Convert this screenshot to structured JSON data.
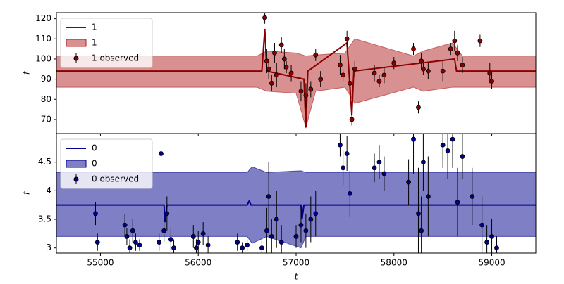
{
  "chart_data": [
    {
      "type": "line",
      "ylabel": "f",
      "xlim": [
        54550,
        59450
      ],
      "ylim": [
        63,
        123
      ],
      "yticks": [
        70,
        80,
        90,
        100,
        110,
        120
      ],
      "legend": "upper left",
      "series": [
        {
          "name": "1",
          "kind": "line",
          "color": "#8b0000",
          "x": [
            54550,
            56650,
            56680,
            56700,
            57080,
            57100,
            57120,
            57520,
            57540,
            57570,
            57590,
            58620,
            58640,
            59450
          ],
          "values": [
            94,
            94,
            115,
            94,
            90,
            66,
            94,
            108,
            94,
            72,
            94,
            100,
            94,
            94
          ]
        },
        {
          "name": "1",
          "kind": "band",
          "color": "#b22222",
          "x": [
            54550,
            56600,
            56700,
            57000,
            57100,
            57200,
            57500,
            57600,
            58200,
            58300,
            58600,
            58700,
            59450
          ],
          "lower": [
            86,
            86,
            84,
            83,
            66,
            84,
            86,
            78,
            86,
            84,
            86,
            86,
            86
          ],
          "upper": [
            101.5,
            101.5,
            104,
            103,
            101.5,
            102,
            103,
            110,
            101.5,
            104,
            108,
            101.5,
            101.5
          ]
        },
        {
          "name": "1 observed",
          "kind": "points",
          "color": "#8b0000",
          "x": [
            56680,
            56700,
            56720,
            56750,
            56780,
            56800,
            56850,
            56880,
            56900,
            56950,
            57050,
            57100,
            57150,
            57200,
            57250,
            57450,
            57480,
            57520,
            57550,
            57570,
            57600,
            57800,
            57850,
            57900,
            58000,
            58200,
            58250,
            58280,
            58300,
            58350,
            58500,
            58580,
            58620,
            58650,
            58700,
            58880,
            58980,
            59000
          ],
          "values": [
            120.5,
            99,
            95,
            88,
            103,
            92,
            107,
            100,
            96,
            93,
            84,
            82,
            85,
            102,
            90,
            97,
            92,
            110,
            88,
            70,
            95,
            93,
            89,
            92,
            98,
            105,
            76,
            99,
            95,
            94,
            94,
            105,
            109,
            103,
            97,
            109,
            93,
            89
          ],
          "errors": [
            3,
            6,
            5,
            4,
            5,
            6,
            4,
            5,
            3,
            4,
            5,
            6,
            4,
            3,
            4,
            5,
            3,
            4,
            5,
            3,
            4,
            4,
            3,
            4,
            3,
            3,
            3,
            4,
            3,
            4,
            5,
            3,
            5,
            4,
            4,
            3,
            5,
            4
          ]
        }
      ]
    },
    {
      "type": "line",
      "ylabel": "f",
      "xlabel": "t",
      "xlim": [
        54550,
        59450
      ],
      "ylim": [
        2.91,
        5.0
      ],
      "yticks": [
        3.0,
        3.5,
        4.0,
        4.5
      ],
      "xticks": [
        55000,
        56000,
        57000,
        58000,
        59000
      ],
      "legend": "upper left",
      "series": [
        {
          "name": "0",
          "kind": "line",
          "color": "#00008b",
          "x": [
            54550,
            55650,
            55660,
            55680,
            56500,
            56520,
            56540,
            57050,
            57060,
            57080,
            59450
          ],
          "values": [
            3.75,
            3.75,
            3.45,
            3.75,
            3.75,
            3.82,
            3.75,
            3.75,
            3.5,
            3.75,
            3.75
          ]
        },
        {
          "name": "0",
          "kind": "band",
          "color": "#00008b",
          "x": [
            54550,
            56500,
            56550,
            56700,
            57050,
            57100,
            57200,
            59450
          ],
          "lower": [
            3.2,
            3.2,
            3.08,
            3.2,
            3.0,
            3.2,
            3.2,
            3.2
          ],
          "upper": [
            4.32,
            4.32,
            4.42,
            4.32,
            4.35,
            4.32,
            4.32,
            4.32
          ]
        },
        {
          "name": "0 observed",
          "kind": "points",
          "color": "#00008b",
          "x": [
            54950,
            54970,
            55250,
            55270,
            55300,
            55330,
            55360,
            55400,
            55600,
            55620,
            55650,
            55680,
            55720,
            55750,
            55950,
            55980,
            56000,
            56050,
            56100,
            56400,
            56450,
            56500,
            56650,
            56700,
            56720,
            56750,
            56800,
            56850,
            57000,
            57050,
            57100,
            57150,
            57200,
            57450,
            57480,
            57520,
            57550,
            57800,
            57850,
            57900,
            58150,
            58200,
            58250,
            58280,
            58300,
            58350,
            58500,
            58550,
            58600,
            58650,
            58700,
            58800,
            58900,
            58950,
            59000,
            59050
          ],
          "values": [
            3.6,
            3.1,
            3.4,
            3.2,
            3.0,
            3.3,
            3.1,
            3.05,
            3.1,
            4.65,
            3.3,
            3.6,
            3.15,
            3.0,
            3.2,
            3.0,
            3.1,
            3.25,
            3.05,
            3.1,
            3.0,
            3.05,
            3.0,
            3.3,
            3.9,
            3.2,
            3.5,
            3.1,
            3.2,
            3.4,
            3.3,
            3.5,
            3.6,
            4.8,
            4.4,
            4.65,
            3.95,
            4.4,
            4.5,
            4.3,
            4.15,
            4.9,
            3.6,
            3.3,
            4.5,
            3.9,
            4.8,
            4.7,
            4.9,
            3.8,
            4.6,
            3.9,
            3.4,
            3.1,
            3.2,
            3.0
          ],
          "errors": [
            0.2,
            0.15,
            0.2,
            0.15,
            0.15,
            0.2,
            0.15,
            0.1,
            0.15,
            0.2,
            0.2,
            0.3,
            0.2,
            0.15,
            0.2,
            0.15,
            0.2,
            0.2,
            0.15,
            0.15,
            0.1,
            0.1,
            0.2,
            0.4,
            0.6,
            0.3,
            0.5,
            0.3,
            0.2,
            0.3,
            0.3,
            0.4,
            0.4,
            0.2,
            0.3,
            0.3,
            0.4,
            0.25,
            0.3,
            0.3,
            0.4,
            0.6,
            0.8,
            0.6,
            0.5,
            0.7,
            0.4,
            0.5,
            0.5,
            0.6,
            0.4,
            0.5,
            0.5,
            0.3,
            0.3,
            0.2
          ]
        }
      ]
    }
  ]
}
